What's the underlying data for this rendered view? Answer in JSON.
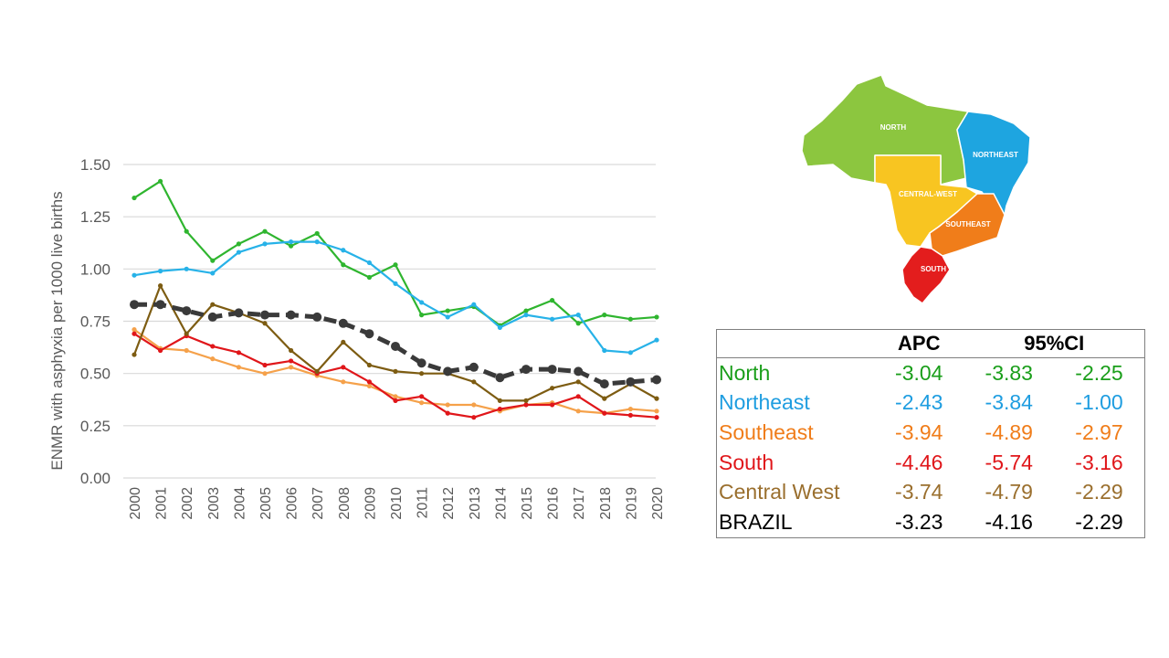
{
  "colors": {
    "North": "#2fb52f",
    "Northeast": "#27b2e8",
    "Southeast": "#f5a14a",
    "South": "#e0161a",
    "Central West": "#7d5c12",
    "BRAZIL": "#3a3a3a",
    "grid": "#d9d9d9",
    "axis_text": "#595959"
  },
  "chart_data": {
    "type": "line",
    "title": "",
    "xlabel": "",
    "ylabel": "ENMR with asphyxia per 1000 live births",
    "ylim": [
      0,
      1.5
    ],
    "yticks": [
      "0.00",
      "0.25",
      "0.50",
      "0.75",
      "1.00",
      "1.25",
      "1.50"
    ],
    "grid": true,
    "x": [
      "2000",
      "2001",
      "2002",
      "2003",
      "2004",
      "2005",
      "2006",
      "2007",
      "2008",
      "2009",
      "2010",
      "2011",
      "2012",
      "2013",
      "2014",
      "2015",
      "2016",
      "2017",
      "2018",
      "2019",
      "2020"
    ],
    "series": [
      {
        "name": "North",
        "values": [
          1.34,
          1.42,
          1.18,
          1.04,
          1.12,
          1.18,
          1.11,
          1.17,
          1.02,
          0.96,
          1.02,
          0.78,
          0.8,
          0.82,
          0.73,
          0.8,
          0.85,
          0.74,
          0.78,
          0.76,
          0.77
        ]
      },
      {
        "name": "Northeast",
        "values": [
          0.97,
          0.99,
          1.0,
          0.98,
          1.08,
          1.12,
          1.13,
          1.13,
          1.09,
          1.03,
          0.93,
          0.84,
          0.77,
          0.83,
          0.72,
          0.78,
          0.76,
          0.78,
          0.61,
          0.6,
          0.66
        ]
      },
      {
        "name": "Southeast",
        "values": [
          0.71,
          0.62,
          0.61,
          0.57,
          0.53,
          0.5,
          0.53,
          0.49,
          0.46,
          0.44,
          0.39,
          0.36,
          0.35,
          0.35,
          0.32,
          0.35,
          0.36,
          0.32,
          0.31,
          0.33,
          0.32
        ]
      },
      {
        "name": "South",
        "values": [
          0.69,
          0.61,
          0.68,
          0.63,
          0.6,
          0.54,
          0.56,
          0.5,
          0.53,
          0.46,
          0.37,
          0.39,
          0.31,
          0.29,
          0.33,
          0.35,
          0.35,
          0.39,
          0.31,
          0.3,
          0.29
        ]
      },
      {
        "name": "Central West",
        "values": [
          0.59,
          0.92,
          0.69,
          0.83,
          0.79,
          0.74,
          0.61,
          0.51,
          0.65,
          0.54,
          0.51,
          0.5,
          0.5,
          0.46,
          0.37,
          0.37,
          0.43,
          0.46,
          0.38,
          0.45,
          0.38
        ]
      },
      {
        "name": "BRAZIL",
        "values": [
          0.83,
          0.83,
          0.8,
          0.77,
          0.79,
          0.78,
          0.78,
          0.77,
          0.74,
          0.69,
          0.63,
          0.55,
          0.51,
          0.53,
          0.48,
          0.52,
          0.52,
          0.51,
          0.45,
          0.46,
          0.47
        ],
        "dashed": true
      }
    ]
  },
  "map": {
    "labels": {
      "north": "NORTH",
      "northeast": "NORTHEAST",
      "central_west": "CENTRAL-WEST",
      "southeast": "SOUTHEAST",
      "south": "SOUTH"
    },
    "region_colors": {
      "north": "#8cc63f",
      "northeast": "#1ea5e0",
      "central_west": "#f8c521",
      "southeast": "#f07d1a",
      "south": "#e31d1d"
    }
  },
  "table": {
    "header_apc": "APC",
    "header_ci": "95%CI",
    "rows": [
      {
        "region": "North",
        "apc": "-3.04",
        "ci_low": "-3.83",
        "ci_high": "-2.25",
        "color": "#1a9e1a"
      },
      {
        "region": "Northeast",
        "apc": "-2.43",
        "ci_low": "-3.84",
        "ci_high": "-1.00",
        "color": "#1e9de0"
      },
      {
        "region": "Southeast",
        "apc": "-3.94",
        "ci_low": "-4.89",
        "ci_high": "-2.97",
        "color": "#f07d1a"
      },
      {
        "region": "South",
        "apc": "-4.46",
        "ci_low": "-5.74",
        "ci_high": "-3.16",
        "color": "#e0161a"
      },
      {
        "region": "Central West",
        "apc": "-3.74",
        "ci_low": "-4.79",
        "ci_high": "-2.29",
        "color": "#9a6f2e"
      },
      {
        "region": "BRAZIL",
        "apc": "-3.23",
        "ci_low": "-4.16",
        "ci_high": "-2.29",
        "color": "#000000"
      }
    ]
  }
}
